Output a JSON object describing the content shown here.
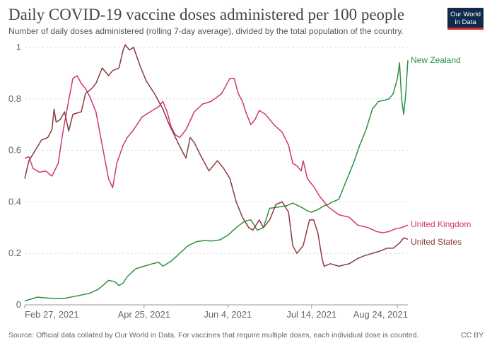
{
  "header": {
    "title": "Daily COVID-19 vaccine doses administered per 100 people",
    "subtitle": "Number of daily doses administered (rolling 7-day average), divided by the total population of the country."
  },
  "logo": {
    "line1": "Our World",
    "line2": "in Data"
  },
  "footer": {
    "source": "Source: Official data collated by Our World in Data. For vaccines that require multiple doses, each individual dose is counted.",
    "license": "CC BY"
  },
  "colors": {
    "nz": "#2d9140",
    "uk": "#d1357a",
    "us": "#8b3a3f",
    "grid": "#dddddd",
    "axis": "#999999",
    "text": "#666666"
  },
  "chart_data": {
    "type": "line",
    "title": "Daily COVID-19 vaccine doses administered per 100 people",
    "ylim": [
      0,
      1
    ],
    "y_ticks": [
      0,
      0.2,
      0.4,
      0.6,
      0.8,
      1
    ],
    "y_tick_labels": [
      "0",
      "0.2",
      "0.4",
      "0.6",
      "0.8",
      "1"
    ],
    "x_range": [
      "2021-02-27",
      "2021-08-29"
    ],
    "x_ticks": [
      "2021-02-27",
      "2021-04-25",
      "2021-06-04",
      "2021-07-14",
      "2021-08-24"
    ],
    "x_tick_labels": [
      "Feb 27, 2021",
      "Apr 25, 2021",
      "Jun 4, 2021",
      "Jul 14, 2021",
      "Aug 24, 2021"
    ],
    "grid": true,
    "legend": "labels at line ends (right)",
    "series": [
      {
        "name": "New Zealand",
        "key": "nz",
        "points": [
          [
            "2021-02-27",
            0.015
          ],
          [
            "2021-03-05",
            0.03
          ],
          [
            "2021-03-12",
            0.025
          ],
          [
            "2021-03-18",
            0.025
          ],
          [
            "2021-03-24",
            0.035
          ],
          [
            "2021-03-30",
            0.045
          ],
          [
            "2021-04-03",
            0.06
          ],
          [
            "2021-04-06",
            0.08
          ],
          [
            "2021-04-08",
            0.095
          ],
          [
            "2021-04-11",
            0.09
          ],
          [
            "2021-04-13",
            0.075
          ],
          [
            "2021-04-15",
            0.085
          ],
          [
            "2021-04-17",
            0.11
          ],
          [
            "2021-04-21",
            0.14
          ],
          [
            "2021-04-25",
            0.15
          ],
          [
            "2021-04-29",
            0.16
          ],
          [
            "2021-05-02",
            0.165
          ],
          [
            "2021-05-04",
            0.15
          ],
          [
            "2021-05-08",
            0.17
          ],
          [
            "2021-05-12",
            0.2
          ],
          [
            "2021-05-16",
            0.23
          ],
          [
            "2021-05-20",
            0.245
          ],
          [
            "2021-05-24",
            0.25
          ],
          [
            "2021-05-27",
            0.248
          ],
          [
            "2021-05-31",
            0.252
          ],
          [
            "2021-06-04",
            0.27
          ],
          [
            "2021-06-08",
            0.3
          ],
          [
            "2021-06-12",
            0.325
          ],
          [
            "2021-06-15",
            0.33
          ],
          [
            "2021-06-18",
            0.29
          ],
          [
            "2021-06-21",
            0.3
          ],
          [
            "2021-06-24",
            0.375
          ],
          [
            "2021-06-28",
            0.38
          ],
          [
            "2021-07-02",
            0.385
          ],
          [
            "2021-07-05",
            0.395
          ],
          [
            "2021-07-09",
            0.38
          ],
          [
            "2021-07-12",
            0.365
          ],
          [
            "2021-07-14",
            0.36
          ],
          [
            "2021-07-17",
            0.37
          ],
          [
            "2021-07-20",
            0.385
          ],
          [
            "2021-07-22",
            0.39
          ],
          [
            "2021-07-24",
            0.4
          ],
          [
            "2021-07-27",
            0.41
          ],
          [
            "2021-07-30",
            0.47
          ],
          [
            "2021-08-03",
            0.55
          ],
          [
            "2021-08-06",
            0.62
          ],
          [
            "2021-08-09",
            0.68
          ],
          [
            "2021-08-12",
            0.76
          ],
          [
            "2021-08-15",
            0.79
          ],
          [
            "2021-08-18",
            0.795
          ],
          [
            "2021-08-20",
            0.8
          ],
          [
            "2021-08-22",
            0.82
          ],
          [
            "2021-08-24",
            0.88
          ],
          [
            "2021-08-25",
            0.94
          ],
          [
            "2021-08-26",
            0.8
          ],
          [
            "2021-08-27",
            0.74
          ],
          [
            "2021-08-28",
            0.82
          ],
          [
            "2021-08-29",
            0.95
          ]
        ]
      },
      {
        "name": "United Kingdom",
        "key": "uk",
        "points": [
          [
            "2021-02-27",
            0.57
          ],
          [
            "2021-03-01",
            0.575
          ],
          [
            "2021-03-03",
            0.53
          ],
          [
            "2021-03-06",
            0.515
          ],
          [
            "2021-03-09",
            0.52
          ],
          [
            "2021-03-12",
            0.5
          ],
          [
            "2021-03-15",
            0.55
          ],
          [
            "2021-03-17",
            0.66
          ],
          [
            "2021-03-19",
            0.75
          ],
          [
            "2021-03-22",
            0.88
          ],
          [
            "2021-03-24",
            0.89
          ],
          [
            "2021-03-26",
            0.86
          ],
          [
            "2021-03-28",
            0.84
          ],
          [
            "2021-03-30",
            0.81
          ],
          [
            "2021-04-02",
            0.75
          ],
          [
            "2021-04-05",
            0.62
          ],
          [
            "2021-04-08",
            0.49
          ],
          [
            "2021-04-10",
            0.455
          ],
          [
            "2021-04-12",
            0.55
          ],
          [
            "2021-04-15",
            0.62
          ],
          [
            "2021-04-17",
            0.65
          ],
          [
            "2021-04-20",
            0.68
          ],
          [
            "2021-04-24",
            0.73
          ],
          [
            "2021-04-28",
            0.75
          ],
          [
            "2021-05-02",
            0.77
          ],
          [
            "2021-05-04",
            0.79
          ],
          [
            "2021-05-06",
            0.75
          ],
          [
            "2021-05-08",
            0.69
          ],
          [
            "2021-05-10",
            0.66
          ],
          [
            "2021-05-12",
            0.65
          ],
          [
            "2021-05-15",
            0.68
          ],
          [
            "2021-05-19",
            0.75
          ],
          [
            "2021-05-23",
            0.78
          ],
          [
            "2021-05-27",
            0.79
          ],
          [
            "2021-06-01",
            0.82
          ],
          [
            "2021-06-05",
            0.88
          ],
          [
            "2021-06-07",
            0.88
          ],
          [
            "2021-06-09",
            0.82
          ],
          [
            "2021-06-11",
            0.79
          ],
          [
            "2021-06-13",
            0.74
          ],
          [
            "2021-06-15",
            0.7
          ],
          [
            "2021-06-17",
            0.72
          ],
          [
            "2021-06-19",
            0.755
          ],
          [
            "2021-06-22",
            0.74
          ],
          [
            "2021-06-26",
            0.7
          ],
          [
            "2021-06-30",
            0.67
          ],
          [
            "2021-07-03",
            0.62
          ],
          [
            "2021-07-05",
            0.55
          ],
          [
            "2021-07-07",
            0.54
          ],
          [
            "2021-07-09",
            0.52
          ],
          [
            "2021-07-10",
            0.56
          ],
          [
            "2021-07-12",
            0.49
          ],
          [
            "2021-07-15",
            0.46
          ],
          [
            "2021-07-18",
            0.42
          ],
          [
            "2021-07-22",
            0.38
          ],
          [
            "2021-07-27",
            0.35
          ],
          [
            "2021-08-01",
            0.34
          ],
          [
            "2021-08-05",
            0.31
          ],
          [
            "2021-08-10",
            0.3
          ],
          [
            "2021-08-14",
            0.285
          ],
          [
            "2021-08-17",
            0.28
          ],
          [
            "2021-08-20",
            0.285
          ],
          [
            "2021-08-23",
            0.295
          ],
          [
            "2021-08-26",
            0.3
          ],
          [
            "2021-08-29",
            0.31
          ]
        ]
      },
      {
        "name": "United States",
        "key": "us",
        "points": [
          [
            "2021-02-27",
            0.49
          ],
          [
            "2021-03-01",
            0.56
          ],
          [
            "2021-03-04",
            0.6
          ],
          [
            "2021-03-07",
            0.64
          ],
          [
            "2021-03-10",
            0.65
          ],
          [
            "2021-03-12",
            0.68
          ],
          [
            "2021-03-13",
            0.76
          ],
          [
            "2021-03-14",
            0.71
          ],
          [
            "2021-03-16",
            0.72
          ],
          [
            "2021-03-18",
            0.75
          ],
          [
            "2021-03-20",
            0.675
          ],
          [
            "2021-03-22",
            0.74
          ],
          [
            "2021-03-26",
            0.75
          ],
          [
            "2021-03-28",
            0.82
          ],
          [
            "2021-03-31",
            0.84
          ],
          [
            "2021-04-02",
            0.86
          ],
          [
            "2021-04-05",
            0.92
          ],
          [
            "2021-04-08",
            0.89
          ],
          [
            "2021-04-10",
            0.91
          ],
          [
            "2021-04-13",
            0.92
          ],
          [
            "2021-04-15",
            0.99
          ],
          [
            "2021-04-16",
            1.01
          ],
          [
            "2021-04-18",
            0.99
          ],
          [
            "2021-04-20",
            1.0
          ],
          [
            "2021-04-23",
            0.93
          ],
          [
            "2021-04-26",
            0.87
          ],
          [
            "2021-04-30",
            0.82
          ],
          [
            "2021-05-04",
            0.76
          ],
          [
            "2021-05-07",
            0.7
          ],
          [
            "2021-05-10",
            0.65
          ],
          [
            "2021-05-13",
            0.6
          ],
          [
            "2021-05-15",
            0.57
          ],
          [
            "2021-05-17",
            0.65
          ],
          [
            "2021-05-19",
            0.63
          ],
          [
            "2021-05-22",
            0.58
          ],
          [
            "2021-05-26",
            0.52
          ],
          [
            "2021-05-30",
            0.56
          ],
          [
            "2021-06-02",
            0.53
          ],
          [
            "2021-06-05",
            0.49
          ],
          [
            "2021-06-08",
            0.4
          ],
          [
            "2021-06-11",
            0.34
          ],
          [
            "2021-06-14",
            0.3
          ],
          [
            "2021-06-16",
            0.29
          ],
          [
            "2021-06-19",
            0.33
          ],
          [
            "2021-06-21",
            0.3
          ],
          [
            "2021-06-24",
            0.33
          ],
          [
            "2021-06-27",
            0.39
          ],
          [
            "2021-06-30",
            0.4
          ],
          [
            "2021-07-03",
            0.36
          ],
          [
            "2021-07-05",
            0.23
          ],
          [
            "2021-07-07",
            0.2
          ],
          [
            "2021-07-10",
            0.23
          ],
          [
            "2021-07-13",
            0.33
          ],
          [
            "2021-07-15",
            0.33
          ],
          [
            "2021-07-17",
            0.28
          ],
          [
            "2021-07-19",
            0.18
          ],
          [
            "2021-07-20",
            0.15
          ],
          [
            "2021-07-23",
            0.16
          ],
          [
            "2021-07-27",
            0.15
          ],
          [
            "2021-08-01",
            0.16
          ],
          [
            "2021-08-05",
            0.18
          ],
          [
            "2021-08-08",
            0.19
          ],
          [
            "2021-08-12",
            0.2
          ],
          [
            "2021-08-16",
            0.21
          ],
          [
            "2021-08-19",
            0.22
          ],
          [
            "2021-08-22",
            0.22
          ],
          [
            "2021-08-25",
            0.24
          ],
          [
            "2021-08-27",
            0.26
          ],
          [
            "2021-08-29",
            0.255
          ]
        ]
      }
    ]
  }
}
